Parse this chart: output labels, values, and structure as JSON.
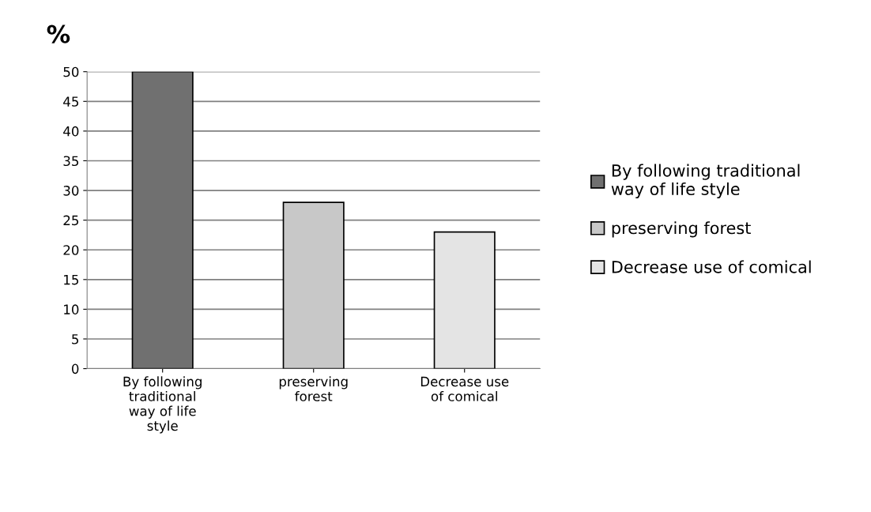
{
  "chart_data": {
    "type": "bar",
    "ylabel": "%",
    "categories": [
      "By following traditional way of life style",
      "preserving forest",
      "Decrease use of comical"
    ],
    "series": [
      {
        "name": "By following traditional way of life style",
        "color": "#707070",
        "values": [
          50,
          null,
          null
        ]
      },
      {
        "name": "preserving forest",
        "color": "#c8c8c8",
        "values": [
          null,
          28,
          null
        ]
      },
      {
        "name": "Decrease use of comical",
        "color": "#e4e4e4",
        "values": [
          null,
          null,
          23
        ]
      }
    ],
    "ylim": [
      0,
      50
    ],
    "yticks": [
      0,
      5,
      10,
      15,
      20,
      25,
      30,
      35,
      40,
      45,
      50
    ],
    "grid": "y",
    "legend": "right"
  }
}
